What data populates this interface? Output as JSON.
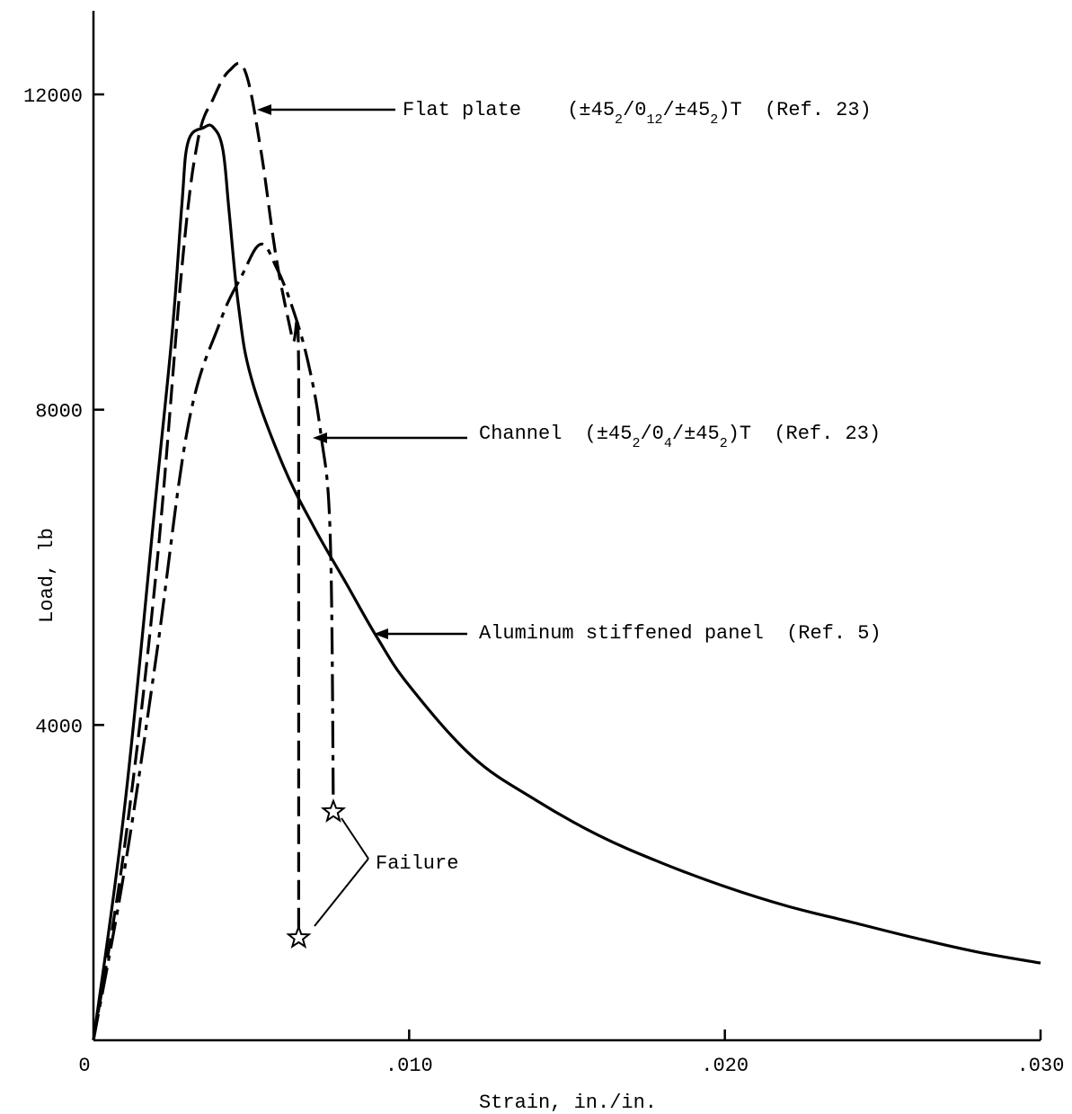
{
  "chart_data": {
    "type": "line",
    "title": "",
    "xlabel": "Strain, in./in.",
    "ylabel": "Load, lb",
    "xlim": [
      0,
      0.03
    ],
    "ylim": [
      0,
      12000
    ],
    "x_ticks": [
      0,
      0.01,
      0.02,
      0.03
    ],
    "x_tick_labels": [
      "0",
      ".010",
      ".020",
      ".030"
    ],
    "y_ticks": [
      4000,
      8000,
      12000
    ],
    "y_tick_labels": [
      "4000",
      "8000",
      "12000"
    ],
    "grid": false,
    "legend": "none",
    "series": [
      {
        "name": "Aluminum stiffened panel (Ref. 5)",
        "style": "solid",
        "points": [
          [
            0,
            0
          ],
          [
            0.001,
            3000
          ],
          [
            0.002,
            7000
          ],
          [
            0.0025,
            9000
          ],
          [
            0.0028,
            10600
          ],
          [
            0.003,
            11400
          ],
          [
            0.0035,
            11580
          ],
          [
            0.0038,
            11580
          ],
          [
            0.0041,
            11300
          ],
          [
            0.0043,
            10500
          ],
          [
            0.0046,
            9300
          ],
          [
            0.005,
            8400
          ],
          [
            0.006,
            7300
          ],
          [
            0.007,
            6500
          ],
          [
            0.008,
            5800
          ],
          [
            0.009,
            5100
          ],
          [
            0.01,
            4500
          ],
          [
            0.012,
            3600
          ],
          [
            0.014,
            3050
          ],
          [
            0.016,
            2600
          ],
          [
            0.018,
            2250
          ],
          [
            0.02,
            1950
          ],
          [
            0.022,
            1700
          ],
          [
            0.024,
            1500
          ],
          [
            0.026,
            1300
          ],
          [
            0.028,
            1120
          ],
          [
            0.03,
            980
          ]
        ]
      },
      {
        "name": "Flat plate (±452/012/±452)T (Ref. 23)",
        "style": "dashed",
        "points": [
          [
            0,
            0
          ],
          [
            0.001,
            2500
          ],
          [
            0.002,
            6000
          ],
          [
            0.0028,
            9800
          ],
          [
            0.0033,
            11400
          ],
          [
            0.0038,
            11950
          ],
          [
            0.0043,
            12300
          ],
          [
            0.0048,
            12300
          ],
          [
            0.0053,
            11300
          ],
          [
            0.0058,
            9900
          ],
          [
            0.0063,
            8900
          ],
          [
            0.0065,
            8500
          ],
          [
            0.0065,
            1300
          ]
        ]
      },
      {
        "name": "Channel (±452/04/±452)T (Ref. 23)",
        "style": "long-dash-short-dash",
        "points": [
          [
            0,
            0
          ],
          [
            0.001,
            2200
          ],
          [
            0.002,
            4900
          ],
          [
            0.003,
            7800
          ],
          [
            0.004,
            9100
          ],
          [
            0.0047,
            9700
          ],
          [
            0.0053,
            10100
          ],
          [
            0.0058,
            9800
          ],
          [
            0.0063,
            9300
          ],
          [
            0.0068,
            8600
          ],
          [
            0.0072,
            7700
          ],
          [
            0.0075,
            6400
          ],
          [
            0.0076,
            2900
          ]
        ]
      }
    ],
    "failure_points": [
      [
        0.0065,
        1300
      ],
      [
        0.0076,
        2900
      ]
    ],
    "annotations": {
      "flat_plate": {
        "name": "Flat plate",
        "layup": "(±45",
        "s1": "2",
        "p2": "/0",
        "s2": "12",
        "p3": "/±45",
        "s3": "2",
        "p4": ")T",
        "ref": "(Ref. 23)"
      },
      "channel": {
        "name": "Channel",
        "layup": "(±45",
        "s1": "2",
        "p2": "/0",
        "s2": "4",
        "p3": "/±45",
        "s3": "2",
        "p4": ")T",
        "ref": "(Ref. 23)"
      },
      "aluminum": {
        "name": "Aluminum stiffened panel",
        "ref": "(Ref. 5)"
      },
      "failure": "Failure"
    }
  }
}
